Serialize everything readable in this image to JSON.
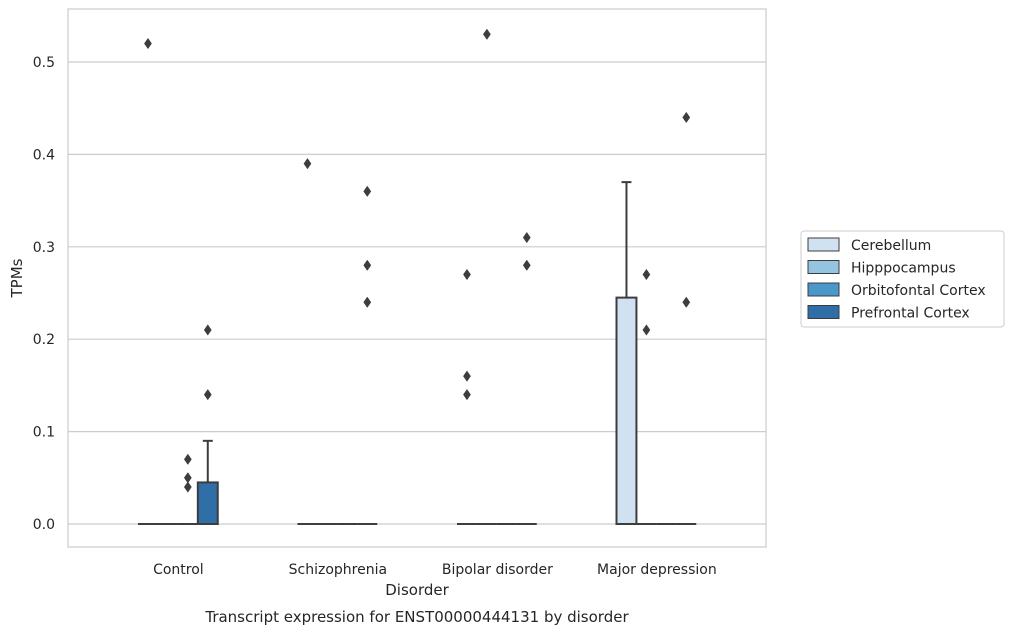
{
  "chart_data": {
    "type": "box",
    "title": "",
    "caption": "Transcript expression for ENST00000444131 by disorder",
    "xlabel": "Disorder",
    "ylabel": "TPMs",
    "categories": [
      "Control",
      "Schizophrenia",
      "Bipolar disorder",
      "Major depression"
    ],
    "ylim": [
      -0.025,
      0.557
    ],
    "yticks": [
      0.0,
      0.1,
      0.2,
      0.3,
      0.4,
      0.5
    ],
    "ytick_labels": [
      "0.0",
      "0.1",
      "0.2",
      "0.3",
      "0.4",
      "0.5"
    ],
    "grid": true,
    "legend_position": "right",
    "series": [
      {
        "name": "Cerebellum",
        "color": "#d0e1f2",
        "boxes": [
          {
            "category": "Control",
            "q1": 0.0,
            "median": 0.0,
            "q3": 0.0,
            "whisker_low": 0.0,
            "whisker_high": 0.0,
            "outliers": [
              0.52
            ]
          },
          {
            "category": "Schizophrenia",
            "q1": 0.0,
            "median": 0.0,
            "q3": 0.0,
            "whisker_low": 0.0,
            "whisker_high": 0.0,
            "outliers": [
              0.39
            ]
          },
          {
            "category": "Bipolar disorder",
            "q1": 0.0,
            "median": 0.0,
            "q3": 0.0,
            "whisker_low": 0.0,
            "whisker_high": 0.0,
            "outliers": [
              0.27,
              0.16,
              0.14
            ]
          },
          {
            "category": "Major depression",
            "q1": 0.0,
            "median": 0.0,
            "q3": 0.245,
            "whisker_low": 0.0,
            "whisker_high": 0.37,
            "outliers": []
          }
        ]
      },
      {
        "name": "Hipppocampus",
        "color": "#94c4df",
        "boxes": [
          {
            "category": "Control",
            "q1": 0.0,
            "median": 0.0,
            "q3": 0.0,
            "whisker_low": 0.0,
            "whisker_high": 0.0,
            "outliers": []
          },
          {
            "category": "Schizophrenia",
            "q1": 0.0,
            "median": 0.0,
            "q3": 0.0,
            "whisker_low": 0.0,
            "whisker_high": 0.0,
            "outliers": []
          },
          {
            "category": "Bipolar disorder",
            "q1": 0.0,
            "median": 0.0,
            "q3": 0.0,
            "whisker_low": 0.0,
            "whisker_high": 0.0,
            "outliers": [
              0.53
            ]
          },
          {
            "category": "Major depression",
            "q1": 0.0,
            "median": 0.0,
            "q3": 0.0,
            "whisker_low": 0.0,
            "whisker_high": 0.0,
            "outliers": [
              0.27,
              0.21
            ]
          }
        ]
      },
      {
        "name": "Orbitofontal Cortex",
        "color": "#4a98c9",
        "boxes": [
          {
            "category": "Control",
            "q1": 0.0,
            "median": 0.0,
            "q3": 0.0,
            "whisker_low": 0.0,
            "whisker_high": 0.0,
            "outliers": [
              0.07,
              0.05,
              0.04
            ]
          },
          {
            "category": "Schizophrenia",
            "q1": 0.0,
            "median": 0.0,
            "q3": 0.0,
            "whisker_low": 0.0,
            "whisker_high": 0.0,
            "outliers": []
          },
          {
            "category": "Bipolar disorder",
            "q1": 0.0,
            "median": 0.0,
            "q3": 0.0,
            "whisker_low": 0.0,
            "whisker_high": 0.0,
            "outliers": []
          },
          {
            "category": "Major depression",
            "q1": 0.0,
            "median": 0.0,
            "q3": 0.0,
            "whisker_low": 0.0,
            "whisker_high": 0.0,
            "outliers": []
          }
        ]
      },
      {
        "name": "Prefrontal Cortex",
        "color": "#2f6ea6",
        "boxes": [
          {
            "category": "Control",
            "q1": 0.0,
            "median": 0.0,
            "q3": 0.045,
            "whisker_low": 0.0,
            "whisker_high": 0.09,
            "outliers": [
              0.21,
              0.14
            ]
          },
          {
            "category": "Schizophrenia",
            "q1": 0.0,
            "median": 0.0,
            "q3": 0.0,
            "whisker_low": 0.0,
            "whisker_high": 0.0,
            "outliers": [
              0.36,
              0.28,
              0.24
            ]
          },
          {
            "category": "Bipolar disorder",
            "q1": 0.0,
            "median": 0.0,
            "q3": 0.0,
            "whisker_low": 0.0,
            "whisker_high": 0.0,
            "outliers": [
              0.31,
              0.28
            ]
          },
          {
            "category": "Major depression",
            "q1": 0.0,
            "median": 0.0,
            "q3": 0.0,
            "whisker_low": 0.0,
            "whisker_high": 0.0,
            "outliers": [
              0.44,
              0.24
            ]
          }
        ]
      }
    ]
  }
}
